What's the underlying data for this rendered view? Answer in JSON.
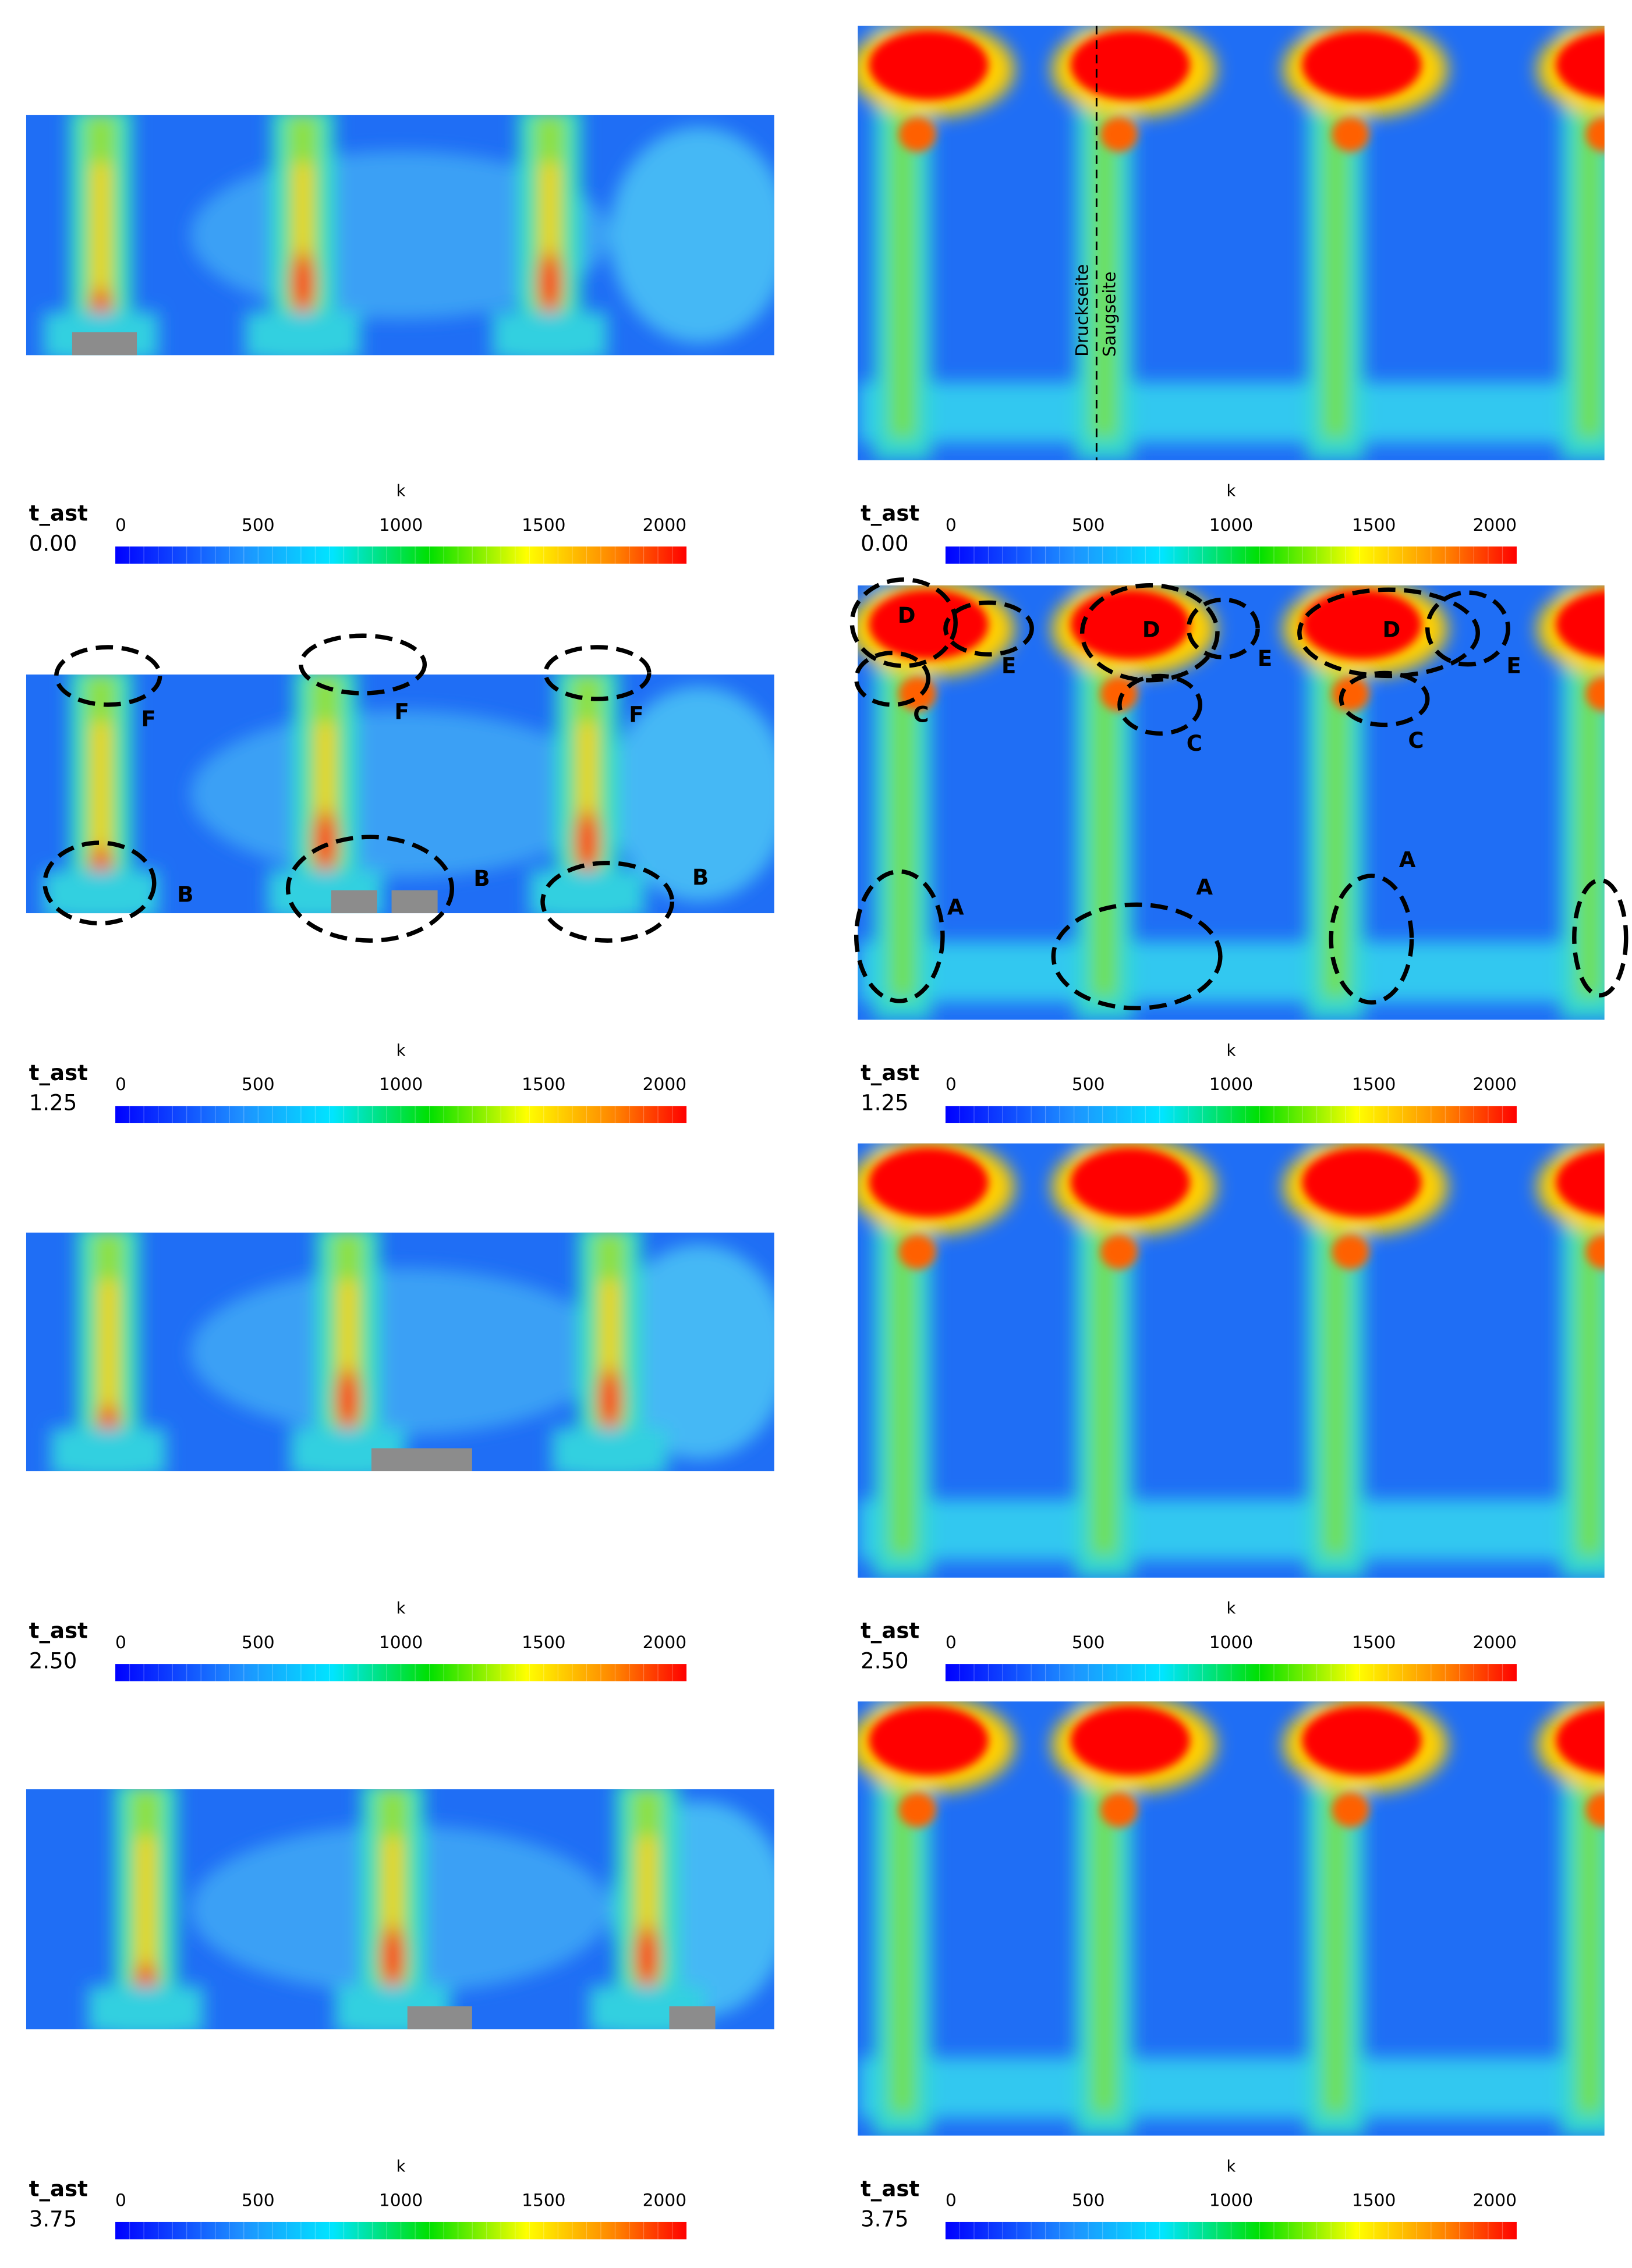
{
  "panels": [
    {
      "time_label": "t_ast",
      "time": "0.00",
      "colorbar": {
        "title": "k",
        "ticks": [
          "0",
          "500",
          "1000",
          "1500",
          "2000"
        ]
      },
      "annotations": []
    },
    {
      "time_label": "t_ast",
      "time": "1.25",
      "colorbar": {
        "title": "k",
        "ticks": [
          "0",
          "500",
          "1000",
          "1500",
          "2000"
        ]
      },
      "annotations": [
        "F",
        "F",
        "F",
        "B",
        "B",
        "B"
      ]
    },
    {
      "time_label": "t_ast",
      "time": "2.50",
      "colorbar": {
        "title": "k",
        "ticks": [
          "0",
          "500",
          "1000",
          "1500",
          "2000"
        ]
      },
      "annotations": []
    },
    {
      "time_label": "t_ast",
      "time": "3.75",
      "colorbar": {
        "title": "k",
        "ticks": [
          "0",
          "500",
          "1000",
          "1500",
          "2000"
        ]
      },
      "annotations": []
    },
    {
      "time_label": "t_ast",
      "time": "0.00",
      "colorbar": {
        "title": "k",
        "ticks": [
          "0",
          "500",
          "1000",
          "1500",
          "2000"
        ]
      },
      "annotations": [
        "Druckseite",
        "Saugseite"
      ]
    },
    {
      "time_label": "t_ast",
      "time": "1.25",
      "colorbar": {
        "title": "k",
        "ticks": [
          "0",
          "500",
          "1000",
          "1500",
          "2000"
        ]
      },
      "annotations": [
        "D",
        "E",
        "C",
        "D",
        "E",
        "C",
        "D",
        "E",
        "C",
        "A",
        "A",
        "A"
      ]
    },
    {
      "time_label": "t_ast",
      "time": "2.50",
      "colorbar": {
        "title": "k",
        "ticks": [
          "0",
          "500",
          "1000",
          "1500",
          "2000"
        ]
      },
      "annotations": []
    },
    {
      "time_label": "t_ast",
      "time": "3.75",
      "colorbar": {
        "title": "k",
        "ticks": [
          "0",
          "500",
          "1000",
          "1500",
          "2000"
        ]
      },
      "annotations": []
    }
  ]
}
